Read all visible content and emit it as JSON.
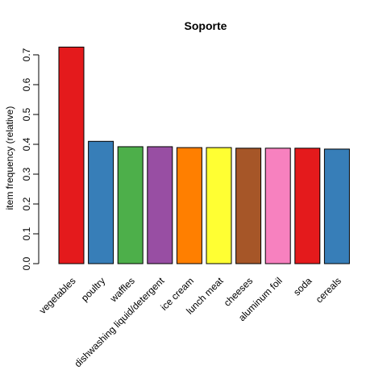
{
  "chart_data": {
    "type": "bar",
    "title": "Soporte",
    "xlabel": "",
    "ylabel": "item frequency (relative)",
    "ylim": [
      0,
      0.7
    ],
    "yticks": [
      "0.0",
      "0.1",
      "0.2",
      "0.3",
      "0.4",
      "0.5",
      "0.6",
      "0.7"
    ],
    "grid": false,
    "categories": [
      "vegetables",
      "poultry",
      "waffles",
      "dishwashing liquid/detergent",
      "ice cream",
      "lunch meat",
      "cheeses",
      "aluminum foil",
      "soda",
      "cereals"
    ],
    "values": [
      0.726,
      0.41,
      0.392,
      0.392,
      0.389,
      0.389,
      0.387,
      0.387,
      0.387,
      0.384
    ],
    "colors": [
      "#E41A1C",
      "#377EB8",
      "#4DAF4A",
      "#984EA3",
      "#FF7F00",
      "#FFFF33",
      "#A65628",
      "#F781BF",
      "#E41A1C",
      "#377EB8"
    ]
  }
}
